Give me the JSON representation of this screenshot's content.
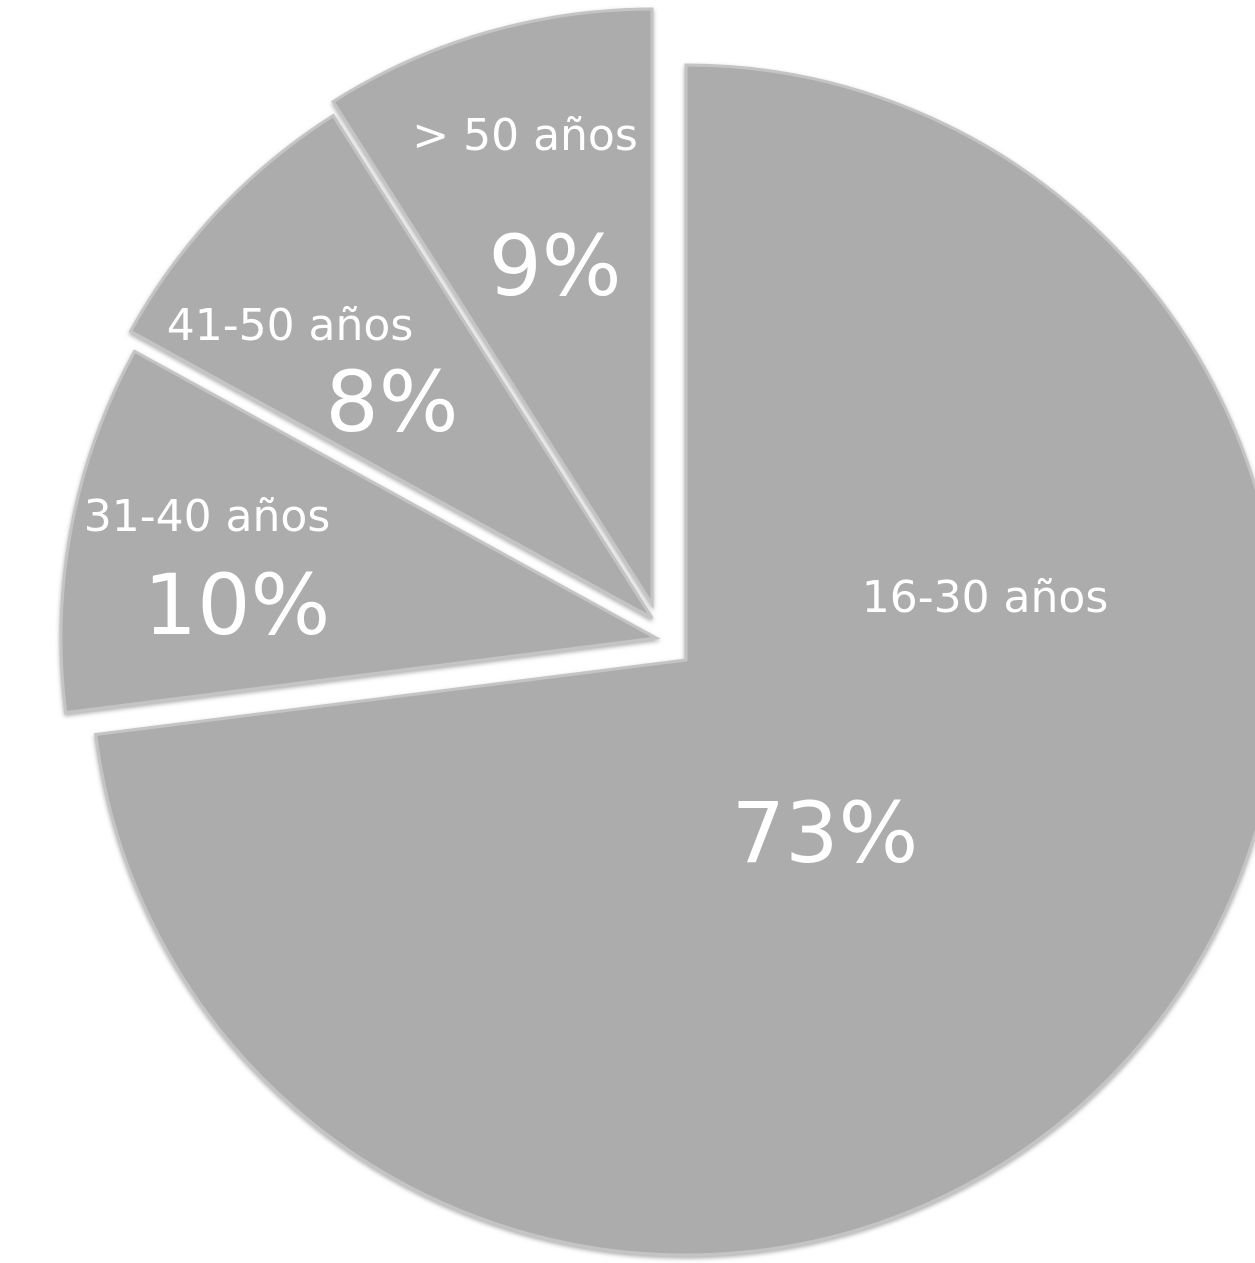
{
  "chart_data": {
    "type": "pie",
    "slices": [
      {
        "label": "16-30 años",
        "value": 73,
        "value_label": "73%"
      },
      {
        "label": "31-40 años",
        "value": 10,
        "value_label": "10%"
      },
      {
        "label": "41-50 años",
        "value": 8,
        "value_label": "8%"
      },
      {
        "label": "> 50 años",
        "value": 9,
        "value_label": "9%"
      }
    ],
    "exploded": true,
    "slice_color": "#acacac",
    "label_color": "#ffffff",
    "legend": "none"
  }
}
